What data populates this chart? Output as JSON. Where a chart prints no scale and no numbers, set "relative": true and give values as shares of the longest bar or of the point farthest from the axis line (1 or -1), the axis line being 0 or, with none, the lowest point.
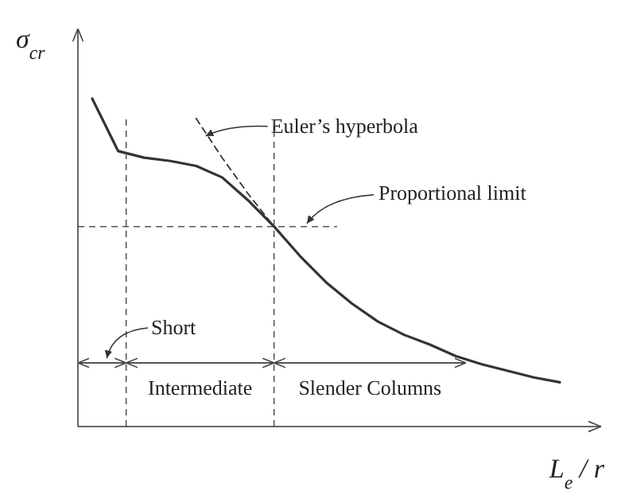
{
  "chart_data": {
    "type": "line",
    "relative": true,
    "xlabel": "L$_{e}$ / r",
    "ylabel": "σ$_{cr}$",
    "categories": [
      null,
      null,
      null,
      null,
      null,
      null,
      null,
      null,
      null,
      null,
      null,
      null,
      null,
      null,
      null,
      null,
      null,
      null,
      null
    ],
    "series": [
      {
        "color": "#333333",
        "line_style": "solid",
        "values": [
          1.0,
          0.84,
          0.82,
          0.81,
          0.795,
          0.76,
          0.69,
          0.61,
          0.52,
          0.44,
          0.375,
          0.32,
          0.28,
          0.25,
          0.215,
          0.19,
          0.17,
          0.15,
          0.135
        ]
      },
      {
        "name": "Euler’s hyperbola",
        "color": "#333333",
        "line_style": "dashed",
        "values": [
          null,
          null,
          null,
          null,
          0.94,
          0.82,
          0.71,
          0.61,
          null,
          null,
          null,
          null,
          null,
          null,
          null,
          null,
          null,
          null,
          null
        ]
      }
    ],
    "ref_lines": [
      {
        "axis": "y",
        "value": 0.61,
        "line_style": "dashed"
      }
    ],
    "annotations": [
      "Proportional limit",
      "Short",
      "Intermediate",
      "Slender Columns"
    ]
  }
}
